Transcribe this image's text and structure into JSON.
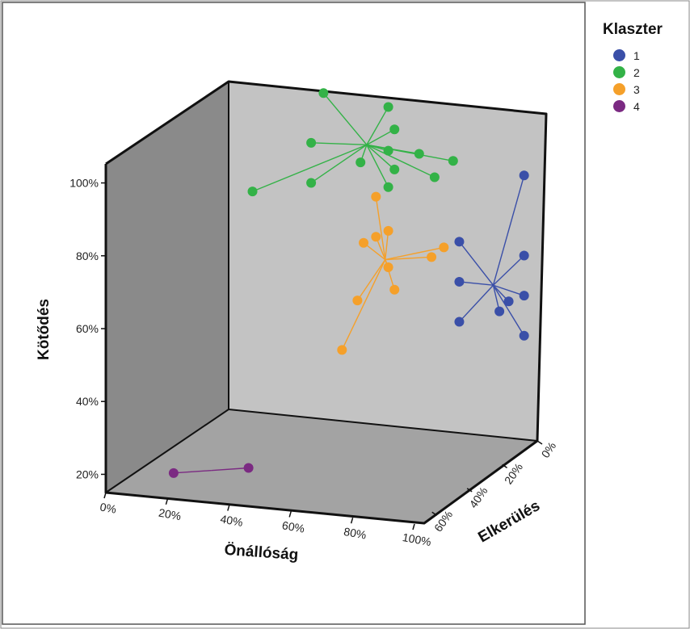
{
  "chart_data": {
    "type": "scatter",
    "subtype": "3d-scatter-with-centroid-drop-lines",
    "axes": {
      "x": {
        "label": "Önállóság",
        "ticks": [
          "0%",
          "20%",
          "40%",
          "60%",
          "80%",
          "100%"
        ],
        "range": [
          0,
          100
        ]
      },
      "y": {
        "label": "Kötődés",
        "ticks": [
          "20%",
          "40%",
          "60%",
          "80%",
          "100%"
        ],
        "range": [
          15,
          105
        ]
      },
      "z": {
        "label": "Elkerülés",
        "ticks": [
          "0%",
          "20%",
          "40%",
          "60%"
        ],
        "range": [
          0,
          70
        ]
      }
    },
    "legend": {
      "title": "Klaszter",
      "placement": "right",
      "items": [
        {
          "label": "1",
          "color": "#3a4fa8"
        },
        {
          "label": "2",
          "color": "#33b247"
        },
        {
          "label": "3",
          "color": "#f5a02a"
        },
        {
          "label": "4",
          "color": "#7b2a82"
        }
      ]
    },
    "series": [
      {
        "name": "1",
        "color": "#3a4fa8",
        "centroid": {
          "x": 88,
          "y": 58,
          "z": 4
        },
        "points": [
          {
            "x": 98,
            "y": 89,
            "z": 4
          },
          {
            "x": 77,
            "y": 69,
            "z": 4
          },
          {
            "x": 98,
            "y": 67,
            "z": 4
          },
          {
            "x": 77,
            "y": 58,
            "z": 4
          },
          {
            "x": 98,
            "y": 56,
            "z": 4
          },
          {
            "x": 93,
            "y": 54,
            "z": 4
          },
          {
            "x": 90,
            "y": 51,
            "z": 4
          },
          {
            "x": 77,
            "y": 47,
            "z": 4
          },
          {
            "x": 98,
            "y": 45,
            "z": 4
          }
        ]
      },
      {
        "name": "2",
        "color": "#33b247",
        "centroid": {
          "x": 47,
          "y": 93,
          "z": 4
        },
        "points": [
          {
            "x": 33,
            "y": 106,
            "z": 4
          },
          {
            "x": 54,
            "y": 104,
            "z": 4
          },
          {
            "x": 56,
            "y": 98,
            "z": 4
          },
          {
            "x": 29,
            "y": 92,
            "z": 4
          },
          {
            "x": 54,
            "y": 92,
            "z": 4
          },
          {
            "x": 64,
            "y": 92,
            "z": 4
          },
          {
            "x": 75,
            "y": 91,
            "z": 4
          },
          {
            "x": 45,
            "y": 88,
            "z": 4
          },
          {
            "x": 56,
            "y": 87,
            "z": 4
          },
          {
            "x": 69,
            "y": 86,
            "z": 4
          },
          {
            "x": 54,
            "y": 82,
            "z": 4
          },
          {
            "x": 29,
            "y": 81,
            "z": 4
          },
          {
            "x": 10,
            "y": 77,
            "z": 4
          }
        ]
      },
      {
        "name": "3",
        "color": "#f5a02a",
        "centroid": {
          "x": 53,
          "y": 62,
          "z": 4
        },
        "points": [
          {
            "x": 50,
            "y": 79,
            "z": 4
          },
          {
            "x": 54,
            "y": 70,
            "z": 4
          },
          {
            "x": 50,
            "y": 68,
            "z": 4
          },
          {
            "x": 46,
            "y": 66,
            "z": 4
          },
          {
            "x": 72,
            "y": 67,
            "z": 4
          },
          {
            "x": 68,
            "y": 64,
            "z": 4
          },
          {
            "x": 54,
            "y": 60,
            "z": 4
          },
          {
            "x": 56,
            "y": 54,
            "z": 4
          },
          {
            "x": 44,
            "y": 50,
            "z": 4
          },
          {
            "x": 39,
            "y": 36,
            "z": 4
          }
        ]
      },
      {
        "name": "4",
        "color": "#7b2a82",
        "centroid": {
          "x": 25,
          "y": 18,
          "z": 54
        },
        "points": [
          {
            "x": 14,
            "y": 17,
            "z": 56
          },
          {
            "x": 36,
            "y": 19,
            "z": 52
          }
        ]
      }
    ],
    "grid": false
  }
}
